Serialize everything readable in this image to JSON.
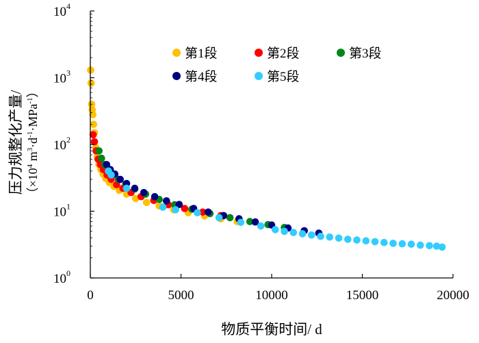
{
  "chart_data": {
    "type": "scatter",
    "title": "",
    "xlabel": "物质平衡时间/ d",
    "ylabel_line1": "压力规整化产量/",
    "ylabel_line2_prefix": "（×10",
    "ylabel_line2_exp": "4",
    "ylabel_line2_unit_a": " m",
    "ylabel_line2_exp_a": "3",
    "ylabel_line2_unit_b": "·d",
    "ylabel_line2_exp_b": "-1",
    "ylabel_line2_unit_c": "·MPa",
    "ylabel_line2_exp_c": "-1",
    "ylabel_line2_suffix": "）",
    "x_scale": "linear",
    "y_scale": "log",
    "xlim": [
      0,
      20000
    ],
    "ylim": [
      1,
      10000
    ],
    "x_ticks": [
      {
        "value": 0,
        "label": "0"
      },
      {
        "value": 5000,
        "label": "5000"
      },
      {
        "value": 10000,
        "label": "10000"
      },
      {
        "value": 15000,
        "label": "15000"
      },
      {
        "value": 20000,
        "label": "20000"
      }
    ],
    "y_ticks": [
      {
        "value": 1,
        "base": "10",
        "exp": "0"
      },
      {
        "value": 10,
        "base": "10",
        "exp": "1"
      },
      {
        "value": 100,
        "base": "10",
        "exp": "2"
      },
      {
        "value": 1000,
        "base": "10",
        "exp": "3"
      },
      {
        "value": 10000,
        "base": "10",
        "exp": "4"
      }
    ],
    "legend_position": "top-right",
    "series": [
      {
        "name": "第1段",
        "color": "#FFC000",
        "x": [
          20,
          40,
          70,
          100,
          140,
          180,
          230,
          300,
          380,
          470,
          580,
          700,
          850,
          1050,
          1300,
          1600,
          2000,
          2500,
          3100,
          3800,
          4600,
          5400,
          6300,
          7200,
          8100
        ],
        "y": [
          1300,
          830,
          400,
          330,
          280,
          200,
          150,
          90,
          65,
          50,
          42,
          36,
          31,
          27,
          23.5,
          20.5,
          18,
          15.5,
          13.5,
          12,
          10.5,
          9.5,
          8.5,
          7.7,
          7
        ]
      },
      {
        "name": "第2段",
        "color": "#FF0000",
        "x": [
          160,
          230,
          320,
          430,
          560,
          720,
          920,
          1150,
          1450,
          1800,
          2250,
          2800,
          3500,
          4300,
          5200,
          6200,
          7200,
          8200
        ],
        "y": [
          140,
          110,
          80,
          60,
          50,
          42,
          35,
          30,
          25,
          22,
          19,
          16.5,
          14.5,
          12.5,
          11,
          9.7,
          8.6,
          7.6
        ]
      },
      {
        "name": "第3段",
        "color": "#00861A",
        "x": [
          480,
          620,
          800,
          1000,
          1250,
          1550,
          1950,
          2450,
          3050,
          3800,
          4650,
          5600,
          6600,
          7700,
          8800,
          9800,
          10700
        ],
        "y": [
          80,
          62,
          50,
          42,
          36,
          30,
          25.5,
          21.5,
          18,
          15,
          12.5,
          10.7,
          9.2,
          8,
          7,
          6.3,
          5.7
        ]
      },
      {
        "name": "第4段",
        "color": "#00007F",
        "x": [
          900,
          1100,
          1350,
          1650,
          2000,
          2450,
          2950,
          3550,
          4200,
          4900,
          5700,
          6500,
          7350,
          8200,
          9100,
          10000,
          10900,
          11800,
          12600
        ],
        "y": [
          50,
          42,
          36,
          30,
          26,
          22,
          19,
          16.5,
          14.3,
          12.6,
          11,
          9.7,
          8.6,
          7.7,
          6.9,
          6.2,
          5.6,
          5.1,
          4.7
        ]
      },
      {
        "name": "第5段",
        "color": "#33CCFF",
        "x": [
          1000,
          1150,
          2000,
          4000,
          4700,
          5900,
          7100,
          8300,
          9400,
          10200,
          10700,
          11200,
          11700,
          12200,
          12700,
          13200,
          13700,
          14200,
          14700,
          15200,
          15700,
          16200,
          16700,
          17200,
          17700,
          18200,
          18700,
          19100,
          19400
        ],
        "y": [
          40,
          35,
          22,
          11.5,
          10.5,
          9.5,
          8,
          6.8,
          6,
          5.3,
          5,
          4.8,
          4.6,
          4.4,
          4.2,
          4.1,
          3.95,
          3.8,
          3.7,
          3.6,
          3.5,
          3.4,
          3.3,
          3.25,
          3.2,
          3.1,
          3.05,
          3,
          2.9
        ]
      }
    ]
  }
}
